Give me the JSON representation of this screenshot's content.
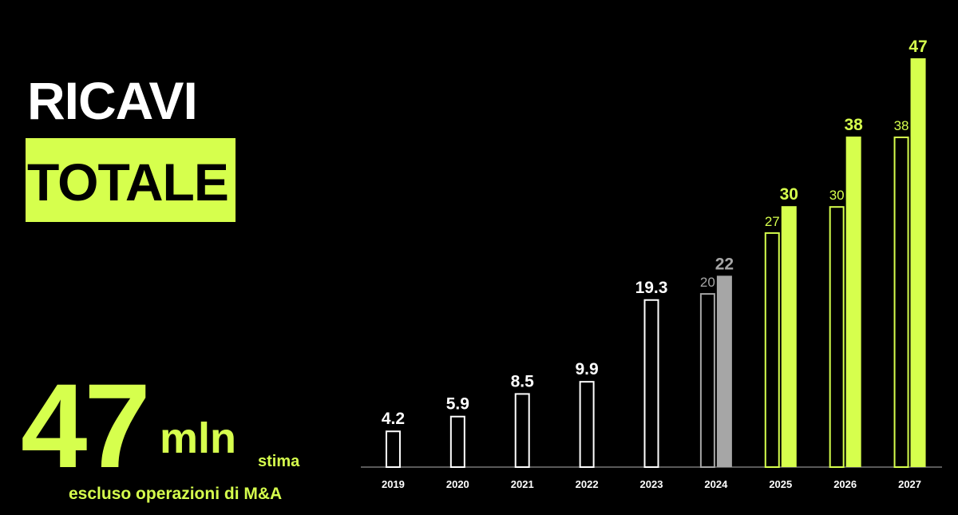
{
  "title": "RICAVI",
  "subtitle": "TOTALE",
  "headline": {
    "value": "47",
    "unit": "mln",
    "note": "stima",
    "footnote": "escluso operazioni di M&A"
  },
  "chart_data": {
    "type": "bar",
    "categories": [
      "2019",
      "2020",
      "2021",
      "2022",
      "2023",
      "2024",
      "2025",
      "2026",
      "2027"
    ],
    "series": [
      {
        "style": "outline",
        "values": [
          4.2,
          5.9,
          8.5,
          9.9,
          19.3,
          20,
          27,
          30,
          38
        ],
        "colors": [
          "#ffffff",
          "#ffffff",
          "#ffffff",
          "#ffffff",
          "#ffffff",
          "#a6a6a6",
          "#d6ff4d",
          "#d6ff4d",
          "#d6ff4d"
        ]
      },
      {
        "style": "filled",
        "values": [
          null,
          null,
          null,
          null,
          null,
          22,
          30,
          38,
          47
        ],
        "colors": [
          "#a6a6a6",
          "#a6a6a6",
          "#a6a6a6",
          "#a6a6a6",
          "#a6a6a6",
          "#a6a6a6",
          "#d6ff4d",
          "#d6ff4d",
          "#d6ff4d"
        ]
      }
    ]
  }
}
